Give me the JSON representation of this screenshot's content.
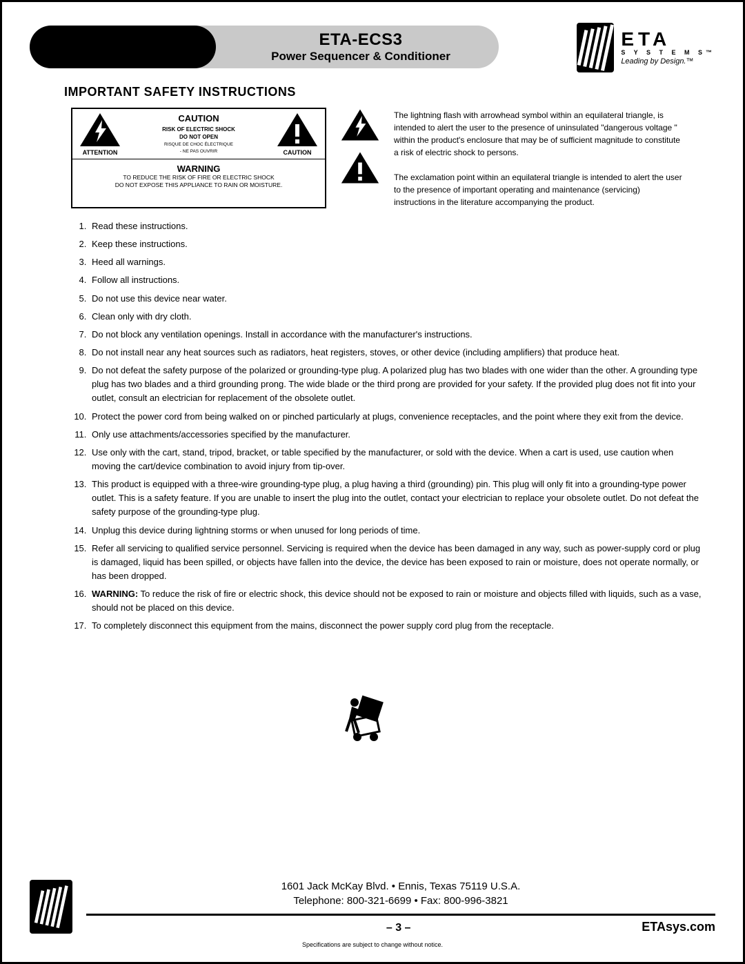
{
  "header": {
    "product_code": "ETA-ECS3",
    "subtitle": "Power Sequencer & Conditioner",
    "logo_text": "ETA",
    "logo_systems": "S Y S T E M S™",
    "logo_tagline": "Leading by Design.™"
  },
  "section_title": "IMPORTANT SAFETY INSTRUCTIONS",
  "caution_box": {
    "attention_label": "ATTENTION",
    "caution_label": "CAUTION",
    "caution_title": "CAUTION",
    "line1": "RISK OF ELECTRIC SHOCK",
    "line2": "DO NOT OPEN",
    "line3": "RISQUE DE CHOC ÉLECTRIQUE",
    "line4": "- NE PAS OUVRIR",
    "warning_title": "WARNING",
    "warning_line1": "TO REDUCE THE RISK OF FIRE OR ELECTRIC SHOCK",
    "warning_line2": "DO NOT EXPOSE THIS APPLIANCE TO RAIN OR MOISTURE."
  },
  "symbol_desc": {
    "bolt": "The lightning flash with arrowhead symbol within an equilateral triangle, is intended to alert the user to the presence of uninsulated \"dangerous voltage \" within the product's enclosure that may be of sufficient magnitude to constitute a risk of electric shock to persons.",
    "excl": "The exclamation point within an equilateral triangle is intended to alert the user to the presence of important operating and maintenance (servicing) instructions in the literature accompanying the product."
  },
  "instructions": [
    "Read these instructions.",
    "Keep these instructions.",
    "Heed all warnings.",
    "Follow all instructions.",
    "Do not use this device near water.",
    "Clean only with dry cloth.",
    "Do not block any ventilation openings. Install in accordance with the manufacturer's instructions.",
    "Do not install near any heat sources such as radiators, heat registers, stoves, or other device (including amplifiers) that produce heat.",
    "Do not defeat the safety purpose of the polarized or grounding-type plug. A polarized plug has two blades with one wider than the other. A grounding type plug has two blades and a third grounding prong. The wide blade or the third prong are provided for your safety. If the provided plug does not fit into your outlet, consult an electrician for replacement of the obsolete outlet.",
    "Protect the power cord from being walked on or pinched particularly at plugs, convenience receptacles, and the point where they exit from the device.",
    "Only use attachments/accessories specified by the manufacturer.",
    "Use only with the cart, stand, tripod, bracket, or table specified by the manufacturer, or sold with the device. When a cart is used, use caution when moving the cart/device combination to avoid injury from tip-over.",
    "This product is equipped with a three-wire grounding-type plug, a plug having a third (grounding) pin. This plug will only fit into a grounding-type power outlet. This is a safety feature. If you are unable to insert the plug into the outlet, contact your electrician to replace your obsolete outlet. Do not defeat the safety purpose of the grounding-type plug.",
    "Unplug this device during lightning storms or when unused for long periods of time.",
    "Refer all servicing to qualified service personnel. Servicing is required when the device has been damaged in any way, such as power-supply cord or plug is damaged, liquid has been spilled, or objects have fallen into the device, the device has been exposed to rain or moisture, does not operate normally, or has been dropped.",
    "<b>WARNING:</b> To reduce the risk of fire or electric shock, this device should not be exposed to rain or moisture and objects filled with liquids, such as a vase, should not be placed on this device.",
    "To completely disconnect this equipment from the mains, disconnect the power supply cord plug from the receptacle."
  ],
  "footer": {
    "address_line1": "1601 Jack McKay Blvd. • Ennis, Texas 75119  U.S.A.",
    "address_line2": "Telephone: 800-321-6699 • Fax: 800-996-3821",
    "page": "– 3 –",
    "site": "ETAsys.com",
    "disclaimer": "Specifications are subject to change without notice."
  },
  "colors": {
    "pill_grey": "#c9c9c9",
    "black": "#000000",
    "white": "#ffffff"
  }
}
